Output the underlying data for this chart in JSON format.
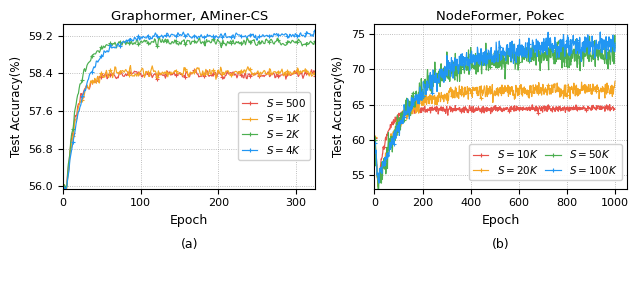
{
  "left": {
    "title": "Graphormer, AMiner-CS",
    "xlabel": "Epoch",
    "ylabel": "Test Accuracy(%)",
    "xlim": [
      0,
      325
    ],
    "ylim": [
      55.95,
      59.45
    ],
    "yticks": [
      56.0,
      56.8,
      57.6,
      58.4,
      59.2
    ],
    "xticks": [
      0,
      100,
      200,
      300
    ],
    "max_epoch": 325,
    "series": [
      {
        "label": "$S = 500$",
        "color": "#e8524a",
        "start_epoch": 5,
        "start_val": 55.98,
        "ramp_end": 75,
        "plateau": 58.38,
        "noise": 0.055,
        "marker": "+"
      },
      {
        "label": "$S = 1K$",
        "color": "#f5a623",
        "start_epoch": 5,
        "start_val": 55.98,
        "ramp_end": 85,
        "plateau": 58.42,
        "noise": 0.07,
        "marker": "+"
      },
      {
        "label": "$S = 2K$",
        "color": "#4caf50",
        "start_epoch": 5,
        "start_val": 55.98,
        "ramp_end": 90,
        "plateau": 59.06,
        "noise": 0.055,
        "marker": "+"
      },
      {
        "label": "$S = 4K$",
        "color": "#2196f3",
        "start_epoch": 5,
        "start_val": 55.98,
        "ramp_end": 140,
        "plateau": 59.2,
        "noise": 0.045,
        "marker": "+"
      }
    ],
    "legend_loc": "center right",
    "subplot_label": "(a)"
  },
  "right": {
    "title": "NodeFormer, Pokec",
    "xlabel": "Epoch",
    "ylabel": "Test Accuracy(%)",
    "xlim": [
      0,
      1050
    ],
    "ylim": [
      53.0,
      76.5
    ],
    "yticks": [
      55,
      60,
      65,
      70,
      75
    ],
    "xticks": [
      0,
      200,
      400,
      600,
      800,
      1000
    ],
    "max_epoch": 1000,
    "series": [
      {
        "label": "$S = 10K$",
        "color": "#e8524a",
        "drop_epoch": 15,
        "start_val": 60.5,
        "drop_val": 53.5,
        "ramp_end": 150,
        "plateau": 64.2,
        "noise": 0.3,
        "marker": "+"
      },
      {
        "label": "$S = 20K$",
        "color": "#f5a623",
        "drop_epoch": 15,
        "start_val": 60.5,
        "drop_val": 53.5,
        "ramp_end": 350,
        "plateau": 66.8,
        "noise": 0.65,
        "marker": "+"
      },
      {
        "label": "$S = 50K$",
        "color": "#4caf50",
        "drop_epoch": 15,
        "start_val": 60.5,
        "drop_val": 53.5,
        "ramp_end": 550,
        "plateau": 71.8,
        "noise": 1.2,
        "marker": "+"
      },
      {
        "label": "$S = 100K$",
        "color": "#2196f3",
        "drop_epoch": 15,
        "start_val": 60.5,
        "drop_val": 53.5,
        "ramp_end": 650,
        "plateau": 73.2,
        "noise": 1.0,
        "marker": "+"
      }
    ],
    "legend_loc": "lower right",
    "subplot_label": "(b)"
  }
}
